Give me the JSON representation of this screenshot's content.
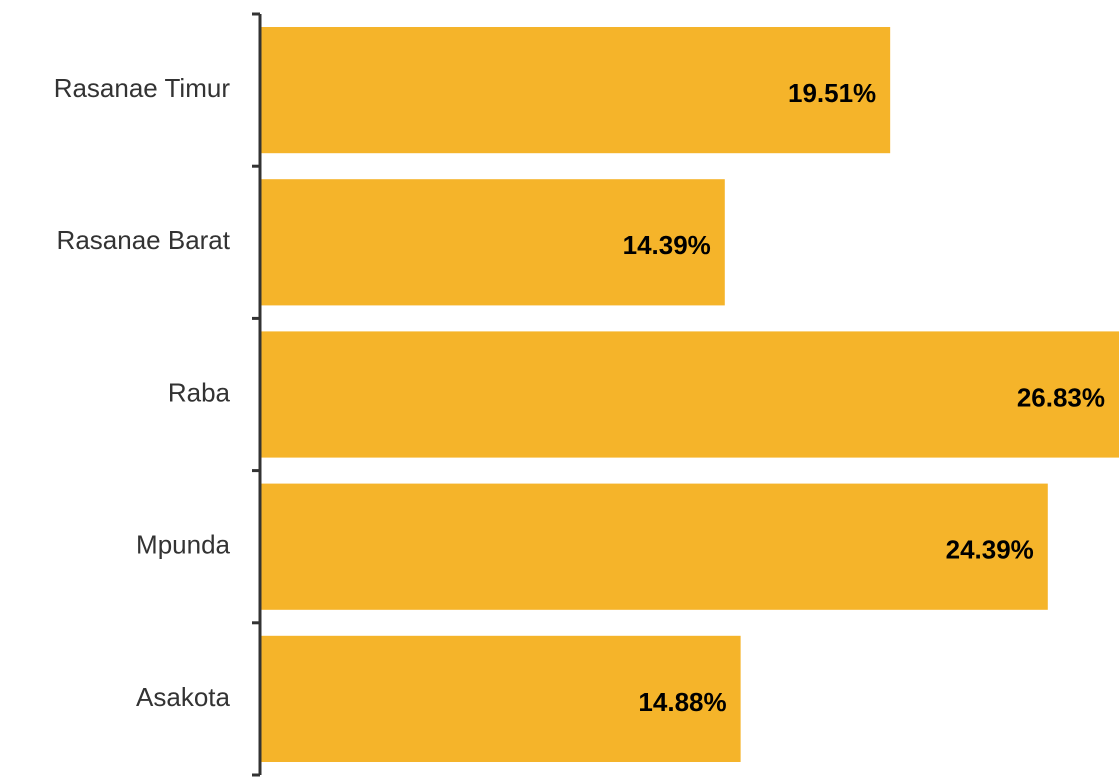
{
  "chart_data": {
    "type": "barh",
    "categories": [
      "Rasanae Timur",
      "Rasanae Barat",
      "Raba",
      "Mpunda",
      "Asakota"
    ],
    "values": [
      19.51,
      14.39,
      26.83,
      24.39,
      14.88
    ],
    "value_labels": [
      "19.51%",
      "14.39%",
      "26.83%",
      "24.39%",
      "14.88%"
    ],
    "color": "#f5b42a"
  }
}
